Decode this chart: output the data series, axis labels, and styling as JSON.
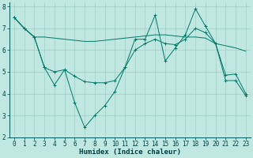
{
  "xlabel": "Humidex (Indice chaleur)",
  "background_color": "#c0e8e0",
  "grid_color": "#a0d0c8",
  "line_color": "#007868",
  "xlim": [
    -0.5,
    23.5
  ],
  "ylim": [
    2,
    8.2
  ],
  "yticks": [
    2,
    3,
    4,
    5,
    6,
    7,
    8
  ],
  "xticks": [
    0,
    1,
    2,
    3,
    4,
    5,
    6,
    7,
    8,
    9,
    10,
    11,
    12,
    13,
    14,
    15,
    16,
    17,
    18,
    19,
    20,
    21,
    22,
    23
  ],
  "line1_x": [
    0,
    1,
    2,
    3,
    4,
    5,
    6,
    7,
    8,
    9,
    10,
    11,
    12,
    13,
    14,
    15,
    16,
    17,
    18,
    19,
    20,
    21,
    22,
    23
  ],
  "line1_y": [
    7.5,
    7.0,
    6.6,
    5.2,
    4.4,
    5.1,
    3.6,
    2.45,
    3.0,
    3.45,
    4.1,
    5.2,
    6.5,
    6.5,
    7.6,
    5.5,
    6.1,
    6.7,
    7.9,
    7.1,
    6.3,
    4.6,
    4.6,
    3.9
  ],
  "line2_x": [
    0,
    1,
    2,
    3,
    4,
    5,
    6,
    7,
    8,
    9,
    10,
    11,
    12,
    13,
    14,
    15,
    16,
    17,
    18,
    19,
    20,
    21,
    22,
    23
  ],
  "line2_y": [
    7.5,
    7.0,
    6.6,
    6.6,
    6.55,
    6.5,
    6.45,
    6.4,
    6.4,
    6.45,
    6.5,
    6.55,
    6.6,
    6.65,
    6.7,
    6.7,
    6.65,
    6.6,
    6.6,
    6.55,
    6.3,
    6.2,
    6.1,
    5.95
  ],
  "line3_x": [
    0,
    1,
    2,
    3,
    4,
    5,
    6,
    7,
    8,
    9,
    10,
    11,
    12,
    13,
    14,
    15,
    16,
    17,
    18,
    19,
    20,
    21,
    22,
    23
  ],
  "line3_y": [
    7.5,
    7.0,
    6.6,
    5.2,
    5.0,
    5.1,
    4.8,
    4.55,
    4.5,
    4.5,
    4.6,
    5.2,
    6.0,
    6.3,
    6.5,
    6.3,
    6.25,
    6.5,
    7.0,
    6.8,
    6.3,
    4.85,
    4.9,
    4.0
  ],
  "tick_fontsize": 5.5,
  "xlabel_fontsize": 6.5
}
